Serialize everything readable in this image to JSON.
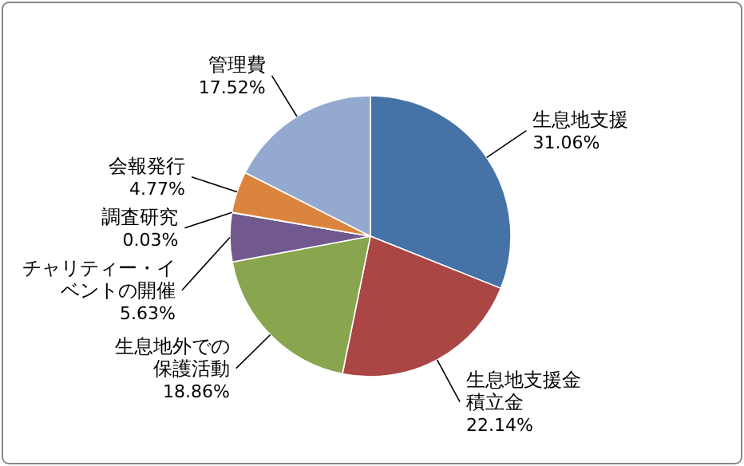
{
  "chart_data": {
    "type": "pie",
    "categories": [
      "生息地支援",
      "生息地支援金積立金",
      "生息地外での保護活動",
      "チャリティー・イベントの開催",
      "調査研究",
      "会報発行",
      "管理費"
    ],
    "values": [
      31.06,
      22.14,
      18.86,
      5.63,
      0.03,
      4.77,
      17.52
    ],
    "value_labels": [
      "31.06%",
      "22.14%",
      "18.86%",
      "5.63%",
      "0.03%",
      "4.77%",
      "17.52%"
    ],
    "colors": [
      "#4572a7",
      "#aa4643",
      "#89a54e",
      "#71588f",
      "#4198af",
      "#db843d",
      "#93a9cf"
    ],
    "legend": false
  }
}
